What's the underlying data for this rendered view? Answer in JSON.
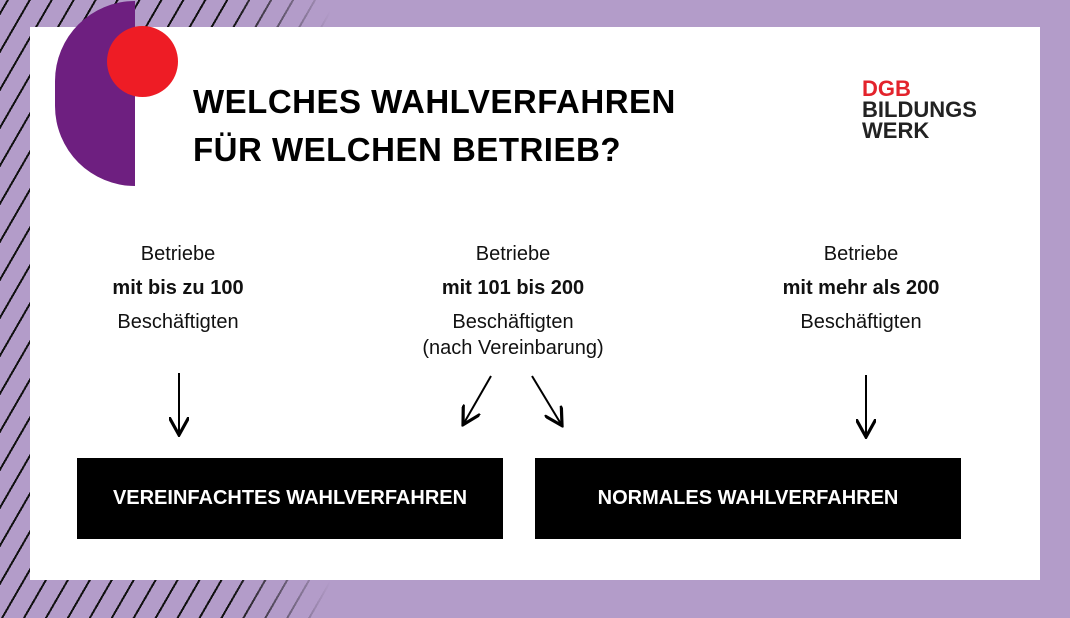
{
  "title": {
    "line1": "WELCHES WAHLVERFAHREN",
    "line2": "FÜR WELCHEN BETRIEB?"
  },
  "logo": {
    "line1": "DGB",
    "line2": "BILDUNGS",
    "line3": "WERK"
  },
  "groups": [
    {
      "line1": "Betriebe",
      "line2": "mit bis zu 100",
      "line3": "Beschäftigten"
    },
    {
      "line1": "Betriebe",
      "line2": "mit 101 bis 200",
      "line3": "Beschäftigten",
      "line4": "(nach Vereinbarung)"
    },
    {
      "line1": "Betriebe",
      "line2": "mit mehr als 200",
      "line3": "Beschäftigten"
    }
  ],
  "boxes": {
    "simplified": "VEREINFACHTES WAHLVERFAHREN",
    "normal": "NORMALES WAHLVERFAHREN"
  },
  "colors": {
    "purple": "#6e1f80",
    "red": "#ee1c25",
    "border": "#b39cc9"
  }
}
